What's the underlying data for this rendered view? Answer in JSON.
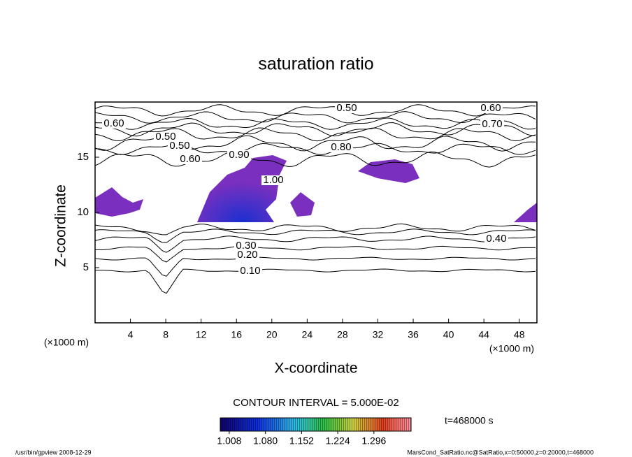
{
  "chart_data": {
    "type": "contour",
    "title": "saturation ratio",
    "x_label": "X-coordinate",
    "y_label": "Z-coordinate",
    "axis_unit": "(×1000 m)",
    "xlim": [
      0,
      50
    ],
    "ylim": [
      0,
      20
    ],
    "xticks": [
      4,
      8,
      12,
      16,
      20,
      24,
      28,
      32,
      36,
      40,
      44,
      48
    ],
    "yticks": [
      5,
      10,
      15
    ],
    "contour_labels": [
      {
        "value": 0.6,
        "label": "0.60"
      },
      {
        "value": 0.5,
        "label": "0.50"
      },
      {
        "value": 0.5,
        "label": "0.50"
      },
      {
        "value": 0.6,
        "label": "0.60"
      },
      {
        "value": 0.9,
        "label": "0.90"
      },
      {
        "value": 0.8,
        "label": "0.80"
      },
      {
        "value": 0.5,
        "label": "0.50"
      },
      {
        "value": 0.6,
        "label": "0.60"
      },
      {
        "value": 0.7,
        "label": "0.70"
      },
      {
        "value": 1.0,
        "label": "1.00"
      },
      {
        "value": 0.4,
        "label": "0.40"
      },
      {
        "value": 0.3,
        "label": "0.30"
      },
      {
        "value": 0.2,
        "label": "0.20"
      },
      {
        "value": 0.1,
        "label": "0.10"
      }
    ],
    "contour_interval": "CONTOUR INTERVAL = 5.000E-02",
    "colorbar_lim": [
      0.99,
      1.37
    ],
    "colorbar_ticks": [
      {
        "value": 1.008,
        "label": "1.008"
      },
      {
        "value": 1.08,
        "label": "1.080"
      },
      {
        "value": 1.152,
        "label": "1.152"
      },
      {
        "value": 1.224,
        "label": "1.224"
      },
      {
        "value": 1.296,
        "label": "1.296"
      }
    ],
    "time_label": "t=468000 s",
    "footer_left": "/usr/bin/gpview  2008-12-29",
    "footer_right": "MarsCond_SatRatio.nc@SatRatio,x=0:50000,z=0:20000,t=468000"
  }
}
